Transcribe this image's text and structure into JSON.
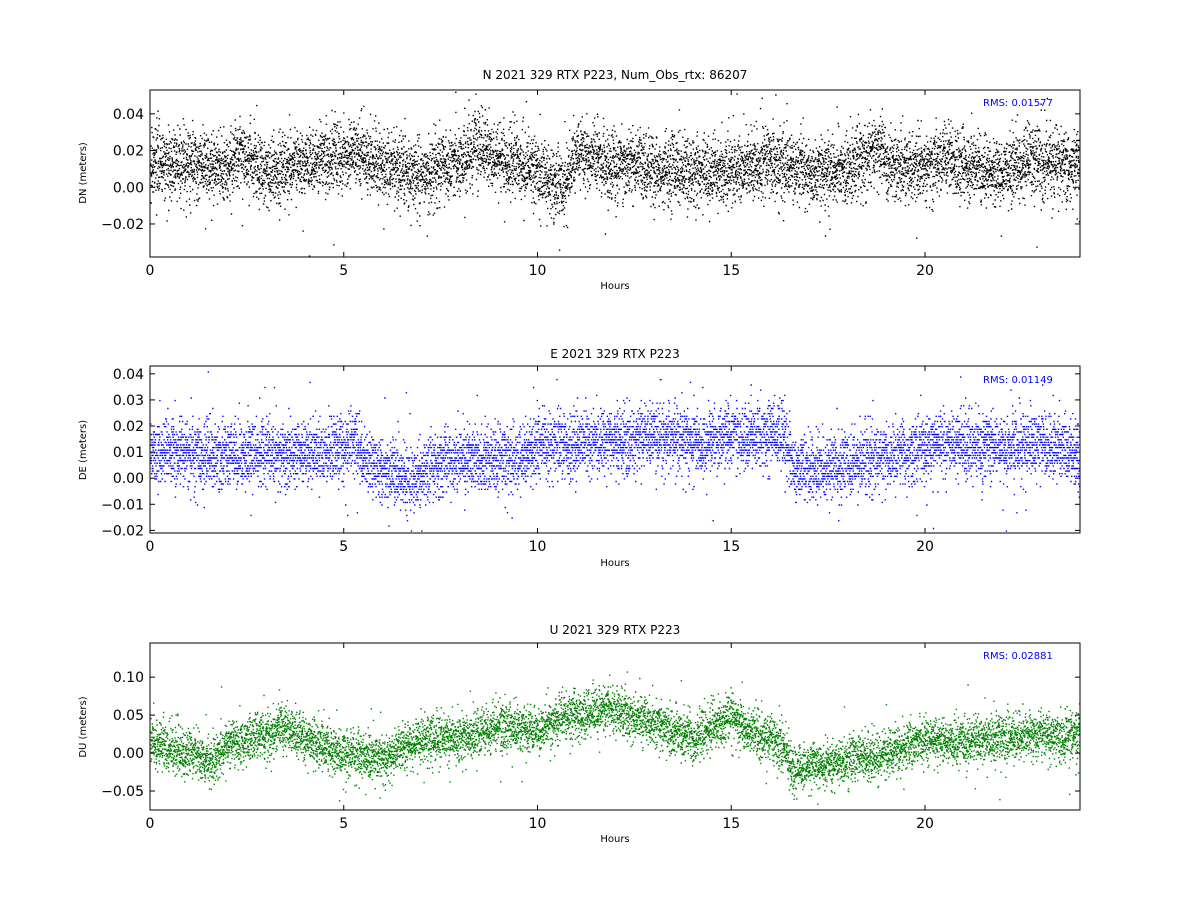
{
  "figure": {
    "background": "#ffffff"
  },
  "chart_data": [
    {
      "type": "scatter",
      "title": "N 2021 329 RTX  P223, Num_Obs_rtx: 86207",
      "xlabel": "Hours",
      "ylabel": "DN (meters)",
      "xlim": [
        0,
        24
      ],
      "ylim": [
        -0.038,
        0.053
      ],
      "xticks": [
        0,
        5,
        10,
        15,
        20
      ],
      "xtick_labels": [
        "0",
        "5",
        "10",
        "15",
        "20"
      ],
      "yticks": [
        -0.02,
        0.0,
        0.02,
        0.04
      ],
      "ytick_labels": [
        "−0.02",
        "0.00",
        "0.02",
        "0.04"
      ],
      "annotation": "RMS:  0.01577",
      "color": "#000000",
      "grid": false,
      "num_obs": 86207,
      "series": [
        {
          "values": {
            "x": [
              0,
              1,
              2,
              2.3,
              3,
              4,
              5,
              5.3,
              6,
              7,
              8,
              8.4,
              9,
              10,
              10.6,
              11,
              12,
              13,
              14,
              15,
              16,
              16.5,
              17,
              18,
              18.8,
              19,
              20,
              20.5,
              21,
              22,
              22.7,
              23,
              24
            ],
            "y": [
              0.012,
              0.013,
              0.011,
              0.02,
              0.008,
              0.014,
              0.018,
              0.02,
              0.012,
              0.008,
              0.014,
              0.024,
              0.015,
              0.01,
              -0.002,
              0.02,
              0.012,
              0.01,
              0.009,
              0.008,
              0.014,
              0.012,
              0.008,
              0.01,
              0.022,
              0.014,
              0.011,
              0.018,
              0.012,
              0.008,
              0.016,
              0.013,
              0.012
            ],
            "spread": 0.018
          }
        }
      ]
    },
    {
      "type": "scatter",
      "title": "E 2021 329 RTX  P223",
      "xlabel": "Hours",
      "ylabel": "DE (meters)",
      "xlim": [
        0,
        24
      ],
      "ylim": [
        -0.021,
        0.043
      ],
      "xticks": [
        0,
        5,
        10,
        15,
        20
      ],
      "xtick_labels": [
        "0",
        "5",
        "10",
        "15",
        "20"
      ],
      "yticks": [
        -0.02,
        -0.01,
        0.0,
        0.01,
        0.02,
        0.03,
        0.04
      ],
      "ytick_labels": [
        "−0.02",
        "−0.01",
        "0.00",
        "0.01",
        "0.02",
        "0.03",
        "0.04"
      ],
      "annotation": "RMS:  0.01149",
      "color": "#0000ff",
      "grid": false,
      "series": [
        {
          "values": {
            "x": [
              0,
              1,
              2,
              3,
              4,
              5,
              5.3,
              5.6,
              6,
              6.7,
              7,
              8,
              9,
              9.6,
              10,
              11,
              12,
              13,
              14,
              15,
              16,
              16.4,
              16.6,
              17,
              18,
              19,
              20,
              21,
              22,
              23,
              24
            ],
            "y": [
              0.011,
              0.01,
              0.008,
              0.009,
              0.01,
              0.012,
              0.014,
              0.005,
              0.004,
              0.0,
              0.003,
              0.008,
              0.007,
              0.009,
              0.013,
              0.013,
              0.014,
              0.016,
              0.014,
              0.016,
              0.017,
              0.016,
              0.004,
              0.004,
              0.006,
              0.009,
              0.012,
              0.013,
              0.012,
              0.013,
              0.009
            ],
            "spread": 0.012
          }
        }
      ]
    },
    {
      "type": "scatter",
      "title": "U 2021 329 RTX  P223",
      "xlabel": "Hours",
      "ylabel": "DU (meters)",
      "xlim": [
        0,
        24
      ],
      "ylim": [
        -0.075,
        0.145
      ],
      "xticks": [
        0,
        5,
        10,
        15,
        20
      ],
      "xtick_labels": [
        "0",
        "5",
        "10",
        "15",
        "20"
      ],
      "yticks": [
        -0.05,
        0.0,
        0.05,
        0.1
      ],
      "ytick_labels": [
        "−0.05",
        "0.00",
        "0.05",
        "0.10"
      ],
      "annotation": "RMS:  0.02881",
      "color": "#008000",
      "grid": false,
      "series": [
        {
          "values": {
            "x": [
              0,
              1,
              1.5,
              2,
              3,
              3.5,
              4,
              5,
              6,
              7,
              8,
              9,
              10,
              10.6,
              11,
              11.8,
              12,
              13,
              14,
              15,
              15.5,
              16,
              16.4,
              16.6,
              17,
              18,
              19,
              20,
              21,
              22,
              23,
              24
            ],
            "y": [
              0.015,
              0.0,
              -0.01,
              0.01,
              0.025,
              0.035,
              0.02,
              0.0,
              -0.005,
              0.02,
              0.02,
              0.035,
              0.03,
              0.05,
              0.05,
              0.06,
              0.055,
              0.04,
              0.02,
              0.05,
              0.03,
              0.02,
              0.0,
              -0.025,
              -0.015,
              -0.01,
              0.0,
              0.02,
              0.015,
              0.02,
              0.025,
              0.02
            ],
            "spread": 0.03
          }
        }
      ]
    }
  ]
}
